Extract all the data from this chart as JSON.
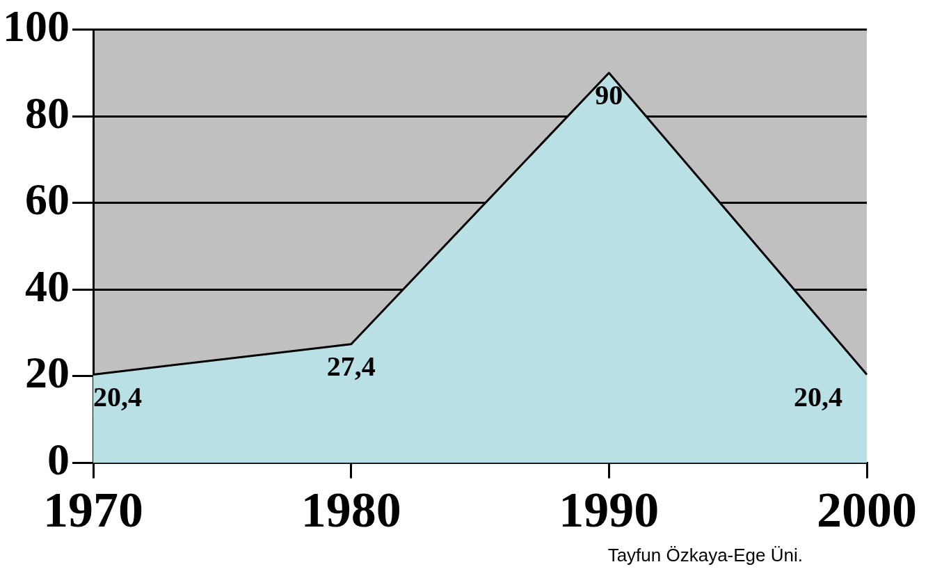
{
  "chart_data": {
    "type": "area",
    "categories": [
      "1970",
      "1980",
      "1990",
      "2000"
    ],
    "series": [
      {
        "color": "#b9e0e4",
        "values": [
          20.4,
          27.4,
          90,
          20.4
        ],
        "value_labels": [
          "20,4",
          "27,4",
          "90",
          "20,4"
        ]
      }
    ],
    "ylim": [
      0,
      100
    ],
    "yticks": [
      0,
      20,
      40,
      60,
      80,
      100
    ],
    "grid": "y",
    "legend": false,
    "marker": "none",
    "annotations": [
      "Tayfun Özkaya-Ege Üni."
    ]
  }
}
